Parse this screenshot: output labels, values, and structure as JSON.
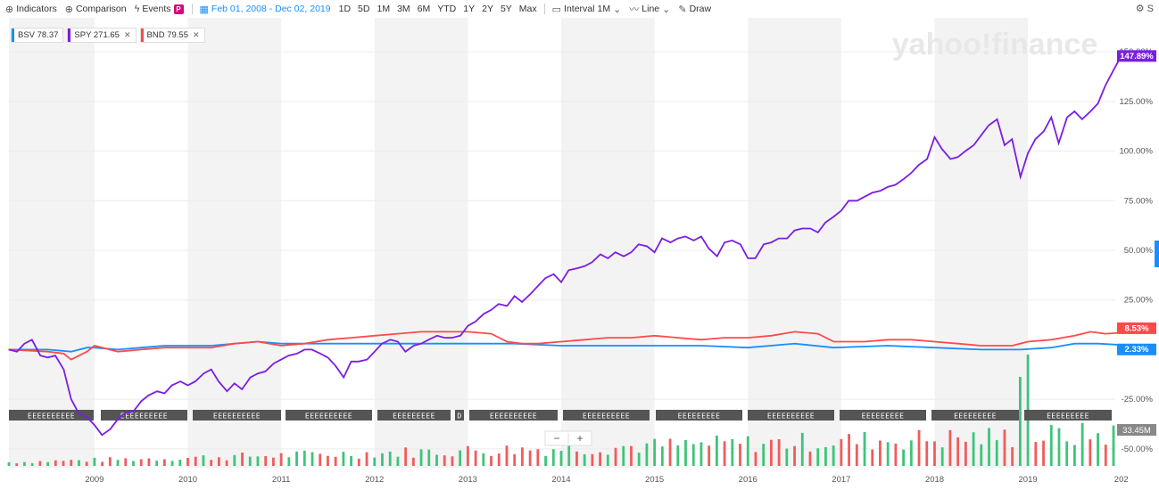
{
  "toolbar": {
    "indicators": "Indicators",
    "comparison": "Comparison",
    "events": "Events",
    "events_badge": "P",
    "date_range": "Feb 01, 2008 - Dec 02, 2019",
    "ranges": [
      "1D",
      "5D",
      "1M",
      "3M",
      "6M",
      "YTD",
      "1Y",
      "2Y",
      "5Y",
      "Max"
    ],
    "interval": "Interval",
    "interval_value": "1M",
    "chart_type": "Line",
    "draw": "Draw",
    "settings_fragment": "S"
  },
  "watermark": "yahoo!finance",
  "tickers": [
    {
      "symbol": "BSV",
      "price": "78.37",
      "color": "#188fff",
      "removable": false
    },
    {
      "symbol": "SPY",
      "price": "271.65",
      "color": "#7a1ee3",
      "removable": true
    },
    {
      "symbol": "BND",
      "price": "79.55",
      "color": "#ff4a4a",
      "removable": true
    }
  ],
  "volume_label": "33.45M",
  "zoom": {
    "minus": "−",
    "plus": "+"
  },
  "event_markers": [
    "EEEEEEEEEE",
    "EEEEEEEEEE",
    "EEEEEEEEEE",
    "EEEEEEEEEE",
    "EEEEEEEEE",
    "D",
    "EEEEEEEEEE",
    "EEEEEEEEEE",
    "EEEEEEEEE",
    "EEEEEEEEEE",
    "EEEEEEEEE",
    "EEEEEEEEE",
    "EEEEEEEEE"
  ],
  "chart_data": {
    "type": "line",
    "x_start": "2008-02",
    "x_end": "2019-12",
    "x_ticks": [
      "2009",
      "2010",
      "2011",
      "2012",
      "2013",
      "2014",
      "2015",
      "2016",
      "2017",
      "2018",
      "2019",
      "202"
    ],
    "y_ticks": [
      "-50.00%",
      "-25.00%",
      "25.00%",
      "50.00%",
      "75.00%",
      "100.00%",
      "125.00%",
      "150.00%"
    ],
    "ylim": [
      -55,
      155
    ],
    "series": [
      {
        "name": "SPY",
        "color": "#7a1ee3",
        "end_label": "147.89%",
        "points": [
          [
            2008.08,
            0
          ],
          [
            2008.17,
            -1
          ],
          [
            2008.25,
            3
          ],
          [
            2008.33,
            5
          ],
          [
            2008.42,
            -3
          ],
          [
            2008.5,
            -4
          ],
          [
            2008.58,
            -3
          ],
          [
            2008.67,
            -10
          ],
          [
            2008.75,
            -25
          ],
          [
            2008.83,
            -32
          ],
          [
            2008.92,
            -34
          ],
          [
            2009.0,
            -38
          ],
          [
            2009.08,
            -43
          ],
          [
            2009.17,
            -40
          ],
          [
            2009.25,
            -35
          ],
          [
            2009.33,
            -32
          ],
          [
            2009.42,
            -31
          ],
          [
            2009.5,
            -26
          ],
          [
            2009.58,
            -23
          ],
          [
            2009.67,
            -21
          ],
          [
            2009.75,
            -22
          ],
          [
            2009.83,
            -18
          ],
          [
            2009.92,
            -16
          ],
          [
            2010.0,
            -18
          ],
          [
            2010.08,
            -16
          ],
          [
            2010.17,
            -12
          ],
          [
            2010.25,
            -10
          ],
          [
            2010.33,
            -16
          ],
          [
            2010.42,
            -21
          ],
          [
            2010.5,
            -17
          ],
          [
            2010.58,
            -20
          ],
          [
            2010.67,
            -14
          ],
          [
            2010.75,
            -12
          ],
          [
            2010.83,
            -11
          ],
          [
            2010.92,
            -7
          ],
          [
            2011.0,
            -5
          ],
          [
            2011.08,
            -3
          ],
          [
            2011.17,
            -2
          ],
          [
            2011.25,
            0
          ],
          [
            2011.33,
            0
          ],
          [
            2011.42,
            -2
          ],
          [
            2011.5,
            -4
          ],
          [
            2011.58,
            -8
          ],
          [
            2011.67,
            -14
          ],
          [
            2011.75,
            -6
          ],
          [
            2011.83,
            -6
          ],
          [
            2011.92,
            -5
          ],
          [
            2012.0,
            -1
          ],
          [
            2012.08,
            3
          ],
          [
            2012.17,
            5
          ],
          [
            2012.25,
            4
          ],
          [
            2012.33,
            -1
          ],
          [
            2012.42,
            2
          ],
          [
            2012.5,
            3
          ],
          [
            2012.58,
            5
          ],
          [
            2012.67,
            7
          ],
          [
            2012.75,
            6
          ],
          [
            2012.83,
            6
          ],
          [
            2012.92,
            7
          ],
          [
            2013.0,
            12
          ],
          [
            2013.08,
            14
          ],
          [
            2013.17,
            18
          ],
          [
            2013.25,
            20
          ],
          [
            2013.33,
            23
          ],
          [
            2013.42,
            22
          ],
          [
            2013.5,
            27
          ],
          [
            2013.58,
            24
          ],
          [
            2013.67,
            28
          ],
          [
            2013.75,
            32
          ],
          [
            2013.83,
            36
          ],
          [
            2013.92,
            38
          ],
          [
            2014.0,
            34
          ],
          [
            2014.08,
            40
          ],
          [
            2014.17,
            41
          ],
          [
            2014.25,
            42
          ],
          [
            2014.33,
            44
          ],
          [
            2014.42,
            48
          ],
          [
            2014.5,
            46
          ],
          [
            2014.58,
            49
          ],
          [
            2014.67,
            47
          ],
          [
            2014.75,
            49
          ],
          [
            2014.83,
            53
          ],
          [
            2014.92,
            52
          ],
          [
            2015.0,
            49
          ],
          [
            2015.08,
            56
          ],
          [
            2015.17,
            54
          ],
          [
            2015.25,
            56
          ],
          [
            2015.33,
            57
          ],
          [
            2015.42,
            55
          ],
          [
            2015.5,
            57
          ],
          [
            2015.58,
            51
          ],
          [
            2015.67,
            47
          ],
          [
            2015.75,
            54
          ],
          [
            2015.83,
            55
          ],
          [
            2015.92,
            53
          ],
          [
            2016.0,
            46
          ],
          [
            2016.08,
            46
          ],
          [
            2016.17,
            53
          ],
          [
            2016.25,
            54
          ],
          [
            2016.33,
            56
          ],
          [
            2016.42,
            56
          ],
          [
            2016.5,
            60
          ],
          [
            2016.58,
            61
          ],
          [
            2016.67,
            61
          ],
          [
            2016.75,
            59
          ],
          [
            2016.83,
            64
          ],
          [
            2016.92,
            67
          ],
          [
            2017.0,
            70
          ],
          [
            2017.08,
            75
          ],
          [
            2017.17,
            75
          ],
          [
            2017.25,
            77
          ],
          [
            2017.33,
            79
          ],
          [
            2017.42,
            80
          ],
          [
            2017.5,
            82
          ],
          [
            2017.58,
            83
          ],
          [
            2017.67,
            86
          ],
          [
            2017.75,
            89
          ],
          [
            2017.83,
            93
          ],
          [
            2017.92,
            96
          ],
          [
            2018.0,
            107
          ],
          [
            2018.08,
            101
          ],
          [
            2018.17,
            96
          ],
          [
            2018.25,
            97
          ],
          [
            2018.33,
            100
          ],
          [
            2018.42,
            103
          ],
          [
            2018.5,
            108
          ],
          [
            2018.58,
            113
          ],
          [
            2018.67,
            116
          ],
          [
            2018.75,
            103
          ],
          [
            2018.83,
            106
          ],
          [
            2018.92,
            87
          ],
          [
            2019.0,
            99
          ],
          [
            2019.08,
            106
          ],
          [
            2019.17,
            110
          ],
          [
            2019.25,
            117
          ],
          [
            2019.33,
            104
          ],
          [
            2019.42,
            117
          ],
          [
            2019.5,
            120
          ],
          [
            2019.58,
            116
          ],
          [
            2019.67,
            120
          ],
          [
            2019.75,
            124
          ],
          [
            2019.83,
            133
          ],
          [
            2019.92,
            141
          ],
          [
            2020.0,
            147.89
          ]
        ]
      },
      {
        "name": "BND",
        "color": "#ff4a4a",
        "end_label": "8.53%",
        "points": [
          [
            2008.08,
            0
          ],
          [
            2008.5,
            -1
          ],
          [
            2008.67,
            -2
          ],
          [
            2008.75,
            -5
          ],
          [
            2008.92,
            -1
          ],
          [
            2009.0,
            2
          ],
          [
            2009.25,
            -1
          ],
          [
            2009.5,
            0
          ],
          [
            2009.75,
            1
          ],
          [
            2010.0,
            1
          ],
          [
            2010.25,
            1
          ],
          [
            2010.5,
            3
          ],
          [
            2010.75,
            4
          ],
          [
            2011.0,
            2
          ],
          [
            2011.25,
            3
          ],
          [
            2011.5,
            5
          ],
          [
            2011.75,
            6
          ],
          [
            2012.0,
            7
          ],
          [
            2012.25,
            8
          ],
          [
            2012.5,
            9
          ],
          [
            2012.75,
            9
          ],
          [
            2013.0,
            9
          ],
          [
            2013.25,
            8
          ],
          [
            2013.42,
            4
          ],
          [
            2013.58,
            3
          ],
          [
            2013.75,
            3
          ],
          [
            2014.0,
            4
          ],
          [
            2014.25,
            5
          ],
          [
            2014.5,
            6
          ],
          [
            2014.75,
            6
          ],
          [
            2015.0,
            7
          ],
          [
            2015.25,
            6
          ],
          [
            2015.5,
            5
          ],
          [
            2015.75,
            6
          ],
          [
            2016.0,
            6
          ],
          [
            2016.25,
            7
          ],
          [
            2016.5,
            9
          ],
          [
            2016.75,
            8
          ],
          [
            2016.92,
            4
          ],
          [
            2017.25,
            4
          ],
          [
            2017.5,
            5
          ],
          [
            2017.75,
            5
          ],
          [
            2018.0,
            4
          ],
          [
            2018.25,
            3
          ],
          [
            2018.5,
            2
          ],
          [
            2018.83,
            2
          ],
          [
            2019.0,
            4
          ],
          [
            2019.25,
            5
          ],
          [
            2019.5,
            7
          ],
          [
            2019.67,
            9
          ],
          [
            2019.83,
            8
          ],
          [
            2020.0,
            8.53
          ]
        ]
      },
      {
        "name": "BSV",
        "color": "#188fff",
        "end_label": "2.33%",
        "points": [
          [
            2008.08,
            0
          ],
          [
            2008.5,
            0
          ],
          [
            2008.75,
            -1
          ],
          [
            2008.92,
            1
          ],
          [
            2009.0,
            1
          ],
          [
            2009.25,
            0
          ],
          [
            2009.5,
            1
          ],
          [
            2009.75,
            2
          ],
          [
            2010.0,
            2
          ],
          [
            2010.25,
            2
          ],
          [
            2010.5,
            3
          ],
          [
            2010.75,
            4
          ],
          [
            2011.0,
            3
          ],
          [
            2011.25,
            3
          ],
          [
            2011.5,
            3
          ],
          [
            2011.75,
            3
          ],
          [
            2012.0,
            3
          ],
          [
            2012.5,
            3
          ],
          [
            2013.0,
            3
          ],
          [
            2013.5,
            3
          ],
          [
            2014.0,
            2
          ],
          [
            2014.5,
            2
          ],
          [
            2015.0,
            2
          ],
          [
            2015.5,
            2
          ],
          [
            2016.0,
            1
          ],
          [
            2016.5,
            3
          ],
          [
            2016.92,
            1
          ],
          [
            2017.5,
            2
          ],
          [
            2018.0,
            1
          ],
          [
            2018.5,
            0
          ],
          [
            2018.92,
            0
          ],
          [
            2019.25,
            1
          ],
          [
            2019.5,
            3
          ],
          [
            2019.75,
            3
          ],
          [
            2020.0,
            2.33
          ]
        ]
      }
    ],
    "volume": {
      "label": "33.45M"
    }
  }
}
